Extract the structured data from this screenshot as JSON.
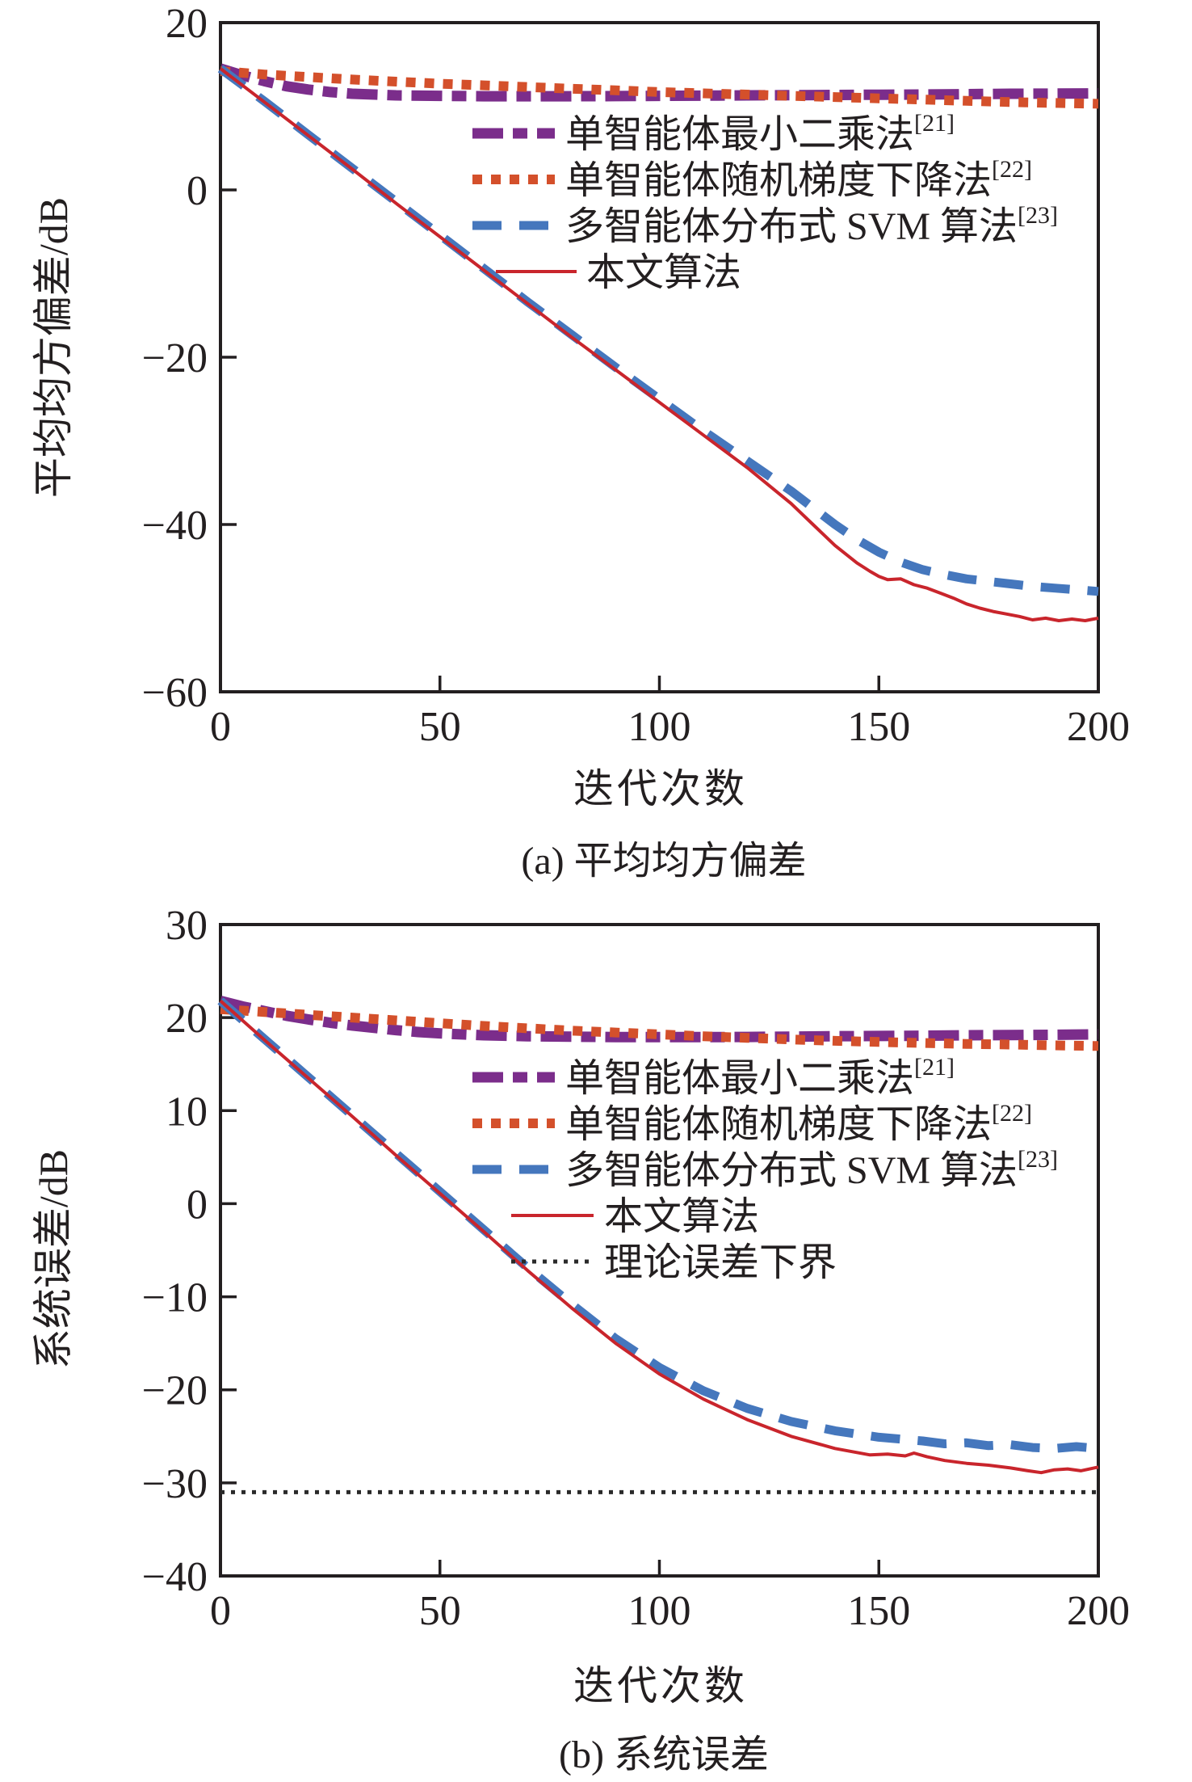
{
  "figure": {
    "background": "#ffffff",
    "frame_color": "#231f20",
    "text_color": "#231f20"
  },
  "chart_data": [
    {
      "type": "line",
      "id": "a",
      "title": "(a) 平均均方偏差",
      "xlabel": "迭代次数",
      "ylabel": "平均均方偏差/dB",
      "xlim": [
        0,
        200
      ],
      "ylim": [
        -60,
        20
      ],
      "xticks": [
        0,
        50,
        100,
        150,
        200
      ],
      "yticks": [
        20,
        0,
        -20,
        -40,
        -60
      ],
      "grid": false,
      "legend_position": "upper-right-inside",
      "series": [
        {
          "name": "单智能体最小二乘法",
          "ref": "[21]",
          "color": "#7b2d8b",
          "style": "dash-dot",
          "points": [
            [
              0,
              14.5
            ],
            [
              5,
              13.7
            ],
            [
              10,
              13.0
            ],
            [
              15,
              12.4
            ],
            [
              20,
              12.0
            ],
            [
              25,
              11.7
            ],
            [
              30,
              11.5
            ],
            [
              40,
              11.3
            ],
            [
              50,
              11.25
            ],
            [
              60,
              11.2
            ],
            [
              70,
              11.2
            ],
            [
              80,
              11.2
            ],
            [
              90,
              11.22
            ],
            [
              100,
              11.25
            ],
            [
              110,
              11.28
            ],
            [
              120,
              11.3
            ],
            [
              130,
              11.32
            ],
            [
              140,
              11.35
            ],
            [
              150,
              11.38
            ],
            [
              160,
              11.4
            ],
            [
              170,
              11.45
            ],
            [
              180,
              11.5
            ],
            [
              190,
              11.52
            ],
            [
              200,
              11.55
            ]
          ]
        },
        {
          "name": "单智能体随机梯度下降法",
          "ref": "[22]",
          "color": "#d4502b",
          "style": "dotted",
          "points": [
            [
              0,
              14.2
            ],
            [
              10,
              13.8
            ],
            [
              20,
              13.5
            ],
            [
              30,
              13.2
            ],
            [
              40,
              12.95
            ],
            [
              50,
              12.7
            ],
            [
              60,
              12.5
            ],
            [
              70,
              12.3
            ],
            [
              80,
              12.1
            ],
            [
              90,
              11.9
            ],
            [
              100,
              11.7
            ],
            [
              110,
              11.55
            ],
            [
              120,
              11.4
            ],
            [
              130,
              11.25
            ],
            [
              140,
              11.1
            ],
            [
              150,
              10.95
            ],
            [
              160,
              10.8
            ],
            [
              170,
              10.65
            ],
            [
              180,
              10.5
            ],
            [
              190,
              10.4
            ],
            [
              200,
              10.3
            ]
          ]
        },
        {
          "name": "多智能体分布式 SVM 算法",
          "ref": "[23]",
          "color": "#4577bd",
          "style": "dashed",
          "points": [
            [
              0,
              14.5
            ],
            [
              10,
              10.6
            ],
            [
              20,
              6.6
            ],
            [
              30,
              2.6
            ],
            [
              40,
              -1.4
            ],
            [
              50,
              -5.4
            ],
            [
              60,
              -9.4
            ],
            [
              70,
              -13.4
            ],
            [
              80,
              -17.3
            ],
            [
              90,
              -21.2
            ],
            [
              100,
              -25.0
            ],
            [
              110,
              -28.8
            ],
            [
              120,
              -32.4
            ],
            [
              130,
              -36.0
            ],
            [
              135,
              -38.0
            ],
            [
              140,
              -40.0
            ],
            [
              145,
              -41.8
            ],
            [
              150,
              -43.3
            ],
            [
              155,
              -44.5
            ],
            [
              160,
              -45.4
            ],
            [
              165,
              -46.0
            ],
            [
              170,
              -46.5
            ],
            [
              175,
              -46.8
            ],
            [
              180,
              -47.1
            ],
            [
              185,
              -47.4
            ],
            [
              190,
              -47.6
            ],
            [
              195,
              -47.8
            ],
            [
              200,
              -48.0
            ]
          ]
        },
        {
          "name": "本文算法",
          "ref": "",
          "color": "#c9252c",
          "style": "solid",
          "points": [
            [
              0,
              14.5
            ],
            [
              10,
              10.5
            ],
            [
              20,
              6.5
            ],
            [
              30,
              2.5
            ],
            [
              40,
              -1.6
            ],
            [
              50,
              -5.6
            ],
            [
              60,
              -9.6
            ],
            [
              70,
              -13.6
            ],
            [
              80,
              -17.6
            ],
            [
              90,
              -21.5
            ],
            [
              100,
              -25.4
            ],
            [
              110,
              -29.3
            ],
            [
              120,
              -33.2
            ],
            [
              130,
              -37.5
            ],
            [
              135,
              -40.0
            ],
            [
              140,
              -42.5
            ],
            [
              145,
              -44.6
            ],
            [
              148,
              -45.6
            ],
            [
              150,
              -46.2
            ],
            [
              152,
              -46.6
            ],
            [
              155,
              -46.5
            ],
            [
              158,
              -47.2
            ],
            [
              161,
              -47.6
            ],
            [
              164,
              -48.2
            ],
            [
              167,
              -48.8
            ],
            [
              170,
              -49.5
            ],
            [
              173,
              -50.0
            ],
            [
              176,
              -50.4
            ],
            [
              179,
              -50.7
            ],
            [
              182,
              -51.0
            ],
            [
              185,
              -51.4
            ],
            [
              188,
              -51.2
            ],
            [
              191,
              -51.5
            ],
            [
              194,
              -51.3
            ],
            [
              197,
              -51.5
            ],
            [
              200,
              -51.2
            ]
          ]
        }
      ]
    },
    {
      "type": "line",
      "id": "b",
      "title": "(b) 系统误差",
      "xlabel": "迭代次数",
      "ylabel": "系统误差/dB",
      "xlim": [
        0,
        200
      ],
      "ylim": [
        -40,
        30
      ],
      "xticks": [
        0,
        50,
        100,
        150,
        200
      ],
      "yticks": [
        30,
        20,
        10,
        0,
        -10,
        -20,
        -30,
        -40
      ],
      "grid": false,
      "legend_position": "upper-right-inside",
      "series": [
        {
          "name": "单智能体最小二乘法",
          "ref": "[21]",
          "color": "#7b2d8b",
          "style": "dash-dot",
          "points": [
            [
              0,
              21.8
            ],
            [
              5,
              21.2
            ],
            [
              10,
              20.7
            ],
            [
              15,
              20.2
            ],
            [
              20,
              19.8
            ],
            [
              25,
              19.45
            ],
            [
              30,
              19.15
            ],
            [
              35,
              18.9
            ],
            [
              40,
              18.65
            ],
            [
              45,
              18.45
            ],
            [
              50,
              18.3
            ],
            [
              60,
              18.1
            ],
            [
              70,
              18.0
            ],
            [
              80,
              17.95
            ],
            [
              90,
              17.9
            ],
            [
              100,
              17.9
            ],
            [
              110,
              17.9
            ],
            [
              120,
              17.92
            ],
            [
              130,
              17.95
            ],
            [
              140,
              18.0
            ],
            [
              150,
              18.02
            ],
            [
              160,
              18.05
            ],
            [
              170,
              18.1
            ],
            [
              180,
              18.12
            ],
            [
              190,
              18.15
            ],
            [
              200,
              18.2
            ]
          ]
        },
        {
          "name": "单智能体随机梯度下降法",
          "ref": "[22]",
          "color": "#d4502b",
          "style": "dotted",
          "points": [
            [
              0,
              20.9
            ],
            [
              10,
              20.6
            ],
            [
              20,
              20.3
            ],
            [
              30,
              20.0
            ],
            [
              40,
              19.7
            ],
            [
              50,
              19.4
            ],
            [
              60,
              19.1
            ],
            [
              70,
              18.85
            ],
            [
              80,
              18.6
            ],
            [
              90,
              18.4
            ],
            [
              100,
              18.2
            ],
            [
              110,
              18.0
            ],
            [
              120,
              17.82
            ],
            [
              130,
              17.65
            ],
            [
              140,
              17.5
            ],
            [
              150,
              17.38
            ],
            [
              160,
              17.27
            ],
            [
              170,
              17.17
            ],
            [
              180,
              17.1
            ],
            [
              190,
              17.02
            ],
            [
              200,
              16.95
            ]
          ]
        },
        {
          "name": "多智能体分布式 SVM 算法",
          "ref": "[23]",
          "color": "#4577bd",
          "style": "dashed",
          "points": [
            [
              0,
              21.8
            ],
            [
              10,
              17.7
            ],
            [
              20,
              13.6
            ],
            [
              30,
              9.5
            ],
            [
              40,
              5.4
            ],
            [
              50,
              1.3
            ],
            [
              60,
              -2.8
            ],
            [
              70,
              -6.9
            ],
            [
              80,
              -10.8
            ],
            [
              90,
              -14.5
            ],
            [
              100,
              -17.6
            ],
            [
              110,
              -20.1
            ],
            [
              120,
              -22.0
            ],
            [
              130,
              -23.4
            ],
            [
              140,
              -24.4
            ],
            [
              150,
              -25.1
            ],
            [
              160,
              -25.5
            ],
            [
              165,
              -25.8
            ],
            [
              170,
              -25.7
            ],
            [
              175,
              -26.0
            ],
            [
              180,
              -25.9
            ],
            [
              185,
              -26.2
            ],
            [
              190,
              -26.3
            ],
            [
              195,
              -26.1
            ],
            [
              200,
              -26.3
            ]
          ]
        },
        {
          "name": "本文算法",
          "ref": "",
          "color": "#c9252c",
          "style": "solid",
          "points": [
            [
              0,
              21.8
            ],
            [
              10,
              17.6
            ],
            [
              20,
              13.5
            ],
            [
              30,
              9.4
            ],
            [
              40,
              5.2
            ],
            [
              50,
              1.1
            ],
            [
              60,
              -3.0
            ],
            [
              70,
              -7.2
            ],
            [
              80,
              -11.2
            ],
            [
              90,
              -15.0
            ],
            [
              100,
              -18.3
            ],
            [
              110,
              -21.0
            ],
            [
              120,
              -23.2
            ],
            [
              130,
              -25.0
            ],
            [
              140,
              -26.3
            ],
            [
              148,
              -27.0
            ],
            [
              152,
              -26.9
            ],
            [
              156,
              -27.1
            ],
            [
              158,
              -26.8
            ],
            [
              161,
              -27.2
            ],
            [
              165,
              -27.6
            ],
            [
              170,
              -27.9
            ],
            [
              175,
              -28.1
            ],
            [
              180,
              -28.4
            ],
            [
              184,
              -28.7
            ],
            [
              187,
              -28.9
            ],
            [
              190,
              -28.6
            ],
            [
              193,
              -28.5
            ],
            [
              196,
              -28.7
            ],
            [
              200,
              -28.3
            ]
          ]
        },
        {
          "name": "理论误差下界",
          "ref": "",
          "color": "#2a2a2a",
          "style": "fine-dotted",
          "points": [
            [
              0,
              -31
            ],
            [
              200,
              -31
            ]
          ]
        }
      ]
    }
  ]
}
